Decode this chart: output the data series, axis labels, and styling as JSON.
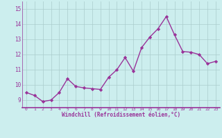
{
  "x": [
    0,
    1,
    2,
    3,
    4,
    5,
    6,
    7,
    8,
    9,
    10,
    11,
    12,
    13,
    14,
    15,
    16,
    17,
    18,
    19,
    20,
    21,
    22,
    23
  ],
  "y": [
    9.5,
    9.3,
    8.9,
    9.0,
    9.5,
    10.4,
    9.9,
    9.8,
    9.75,
    9.7,
    10.5,
    11.0,
    11.8,
    10.9,
    12.45,
    13.15,
    13.7,
    14.5,
    13.3,
    12.2,
    12.15,
    12.0,
    11.4,
    11.55
  ],
  "line_color": "#993399",
  "marker": "D",
  "marker_size": 2.2,
  "bg_color": "#cceeee",
  "grid_color": "#aacccc",
  "xlabel": "Windchill (Refroidissement éolien,°C)",
  "ylim": [
    8.5,
    15.5
  ],
  "xlim": [
    -0.5,
    23.5
  ],
  "yticks": [
    9,
    10,
    11,
    12,
    13,
    14,
    15
  ],
  "xticks": [
    0,
    1,
    2,
    3,
    4,
    5,
    6,
    7,
    8,
    9,
    10,
    11,
    12,
    13,
    14,
    15,
    16,
    17,
    18,
    19,
    20,
    21,
    22,
    23
  ],
  "tick_color": "#993399",
  "label_color": "#993399",
  "grid_linewidth": 0.5,
  "spine_color": "#993399",
  "axis_linewidth": 1.2
}
